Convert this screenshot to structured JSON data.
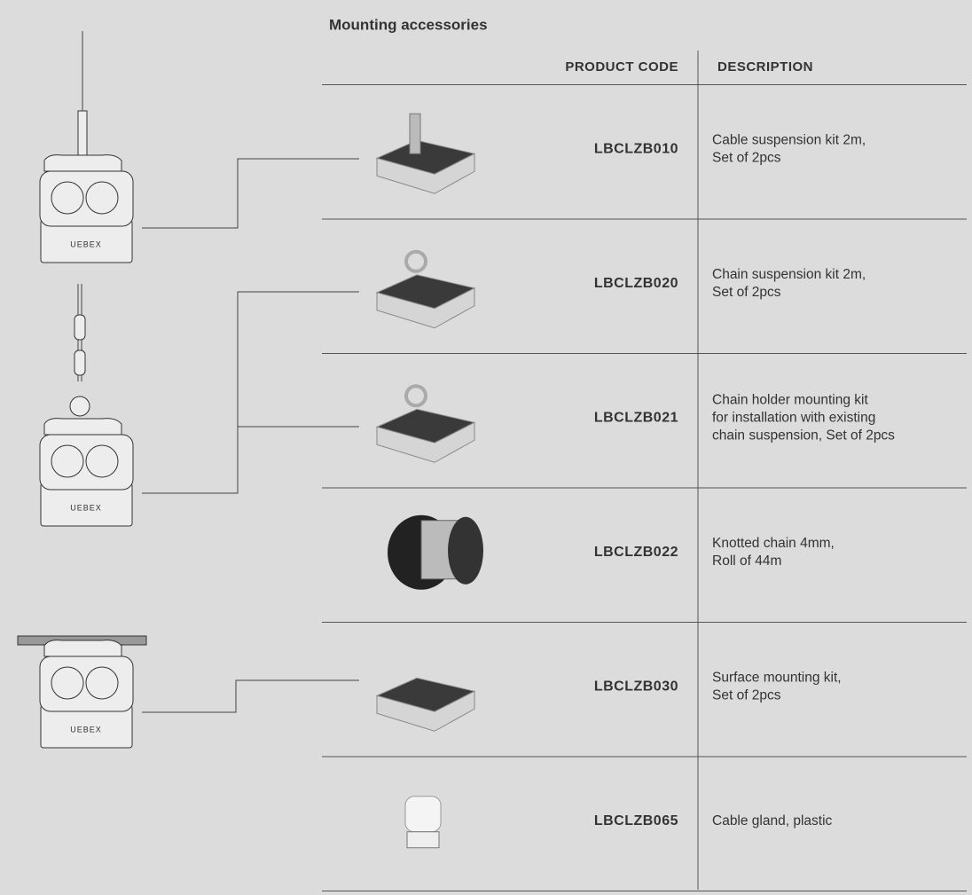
{
  "title": "Mounting accessories",
  "table": {
    "headers": [
      "PRODUCT CODE",
      "DESCRIPTION"
    ],
    "rows": [
      {
        "code": "LBCLZB010",
        "description": [
          "Cable suspension kit 2m,",
          "Set of 2pcs"
        ]
      },
      {
        "code": "LBCLZB020",
        "description": [
          "Chain suspension kit 2m,",
          "Set of 2pcs"
        ]
      },
      {
        "code": "LBCLZB021",
        "description": [
          "Chain holder mounting kit",
          "for installation with existing",
          "chain suspension, Set of 2pcs"
        ]
      },
      {
        "code": "LBCLZB022",
        "description": [
          "Knotted chain 4mm,",
          "Roll of 44m"
        ]
      },
      {
        "code": "LBCLZB030",
        "description": [
          "Surface mounting kit,",
          "Set of 2pcs"
        ]
      },
      {
        "code": "LBCLZB065",
        "description": [
          "Cable gland, plastic"
        ]
      }
    ]
  },
  "fixtures": [
    {
      "label": "UEBEX"
    },
    {
      "label": "UEBEX"
    },
    {
      "label": "UEBEX"
    }
  ]
}
